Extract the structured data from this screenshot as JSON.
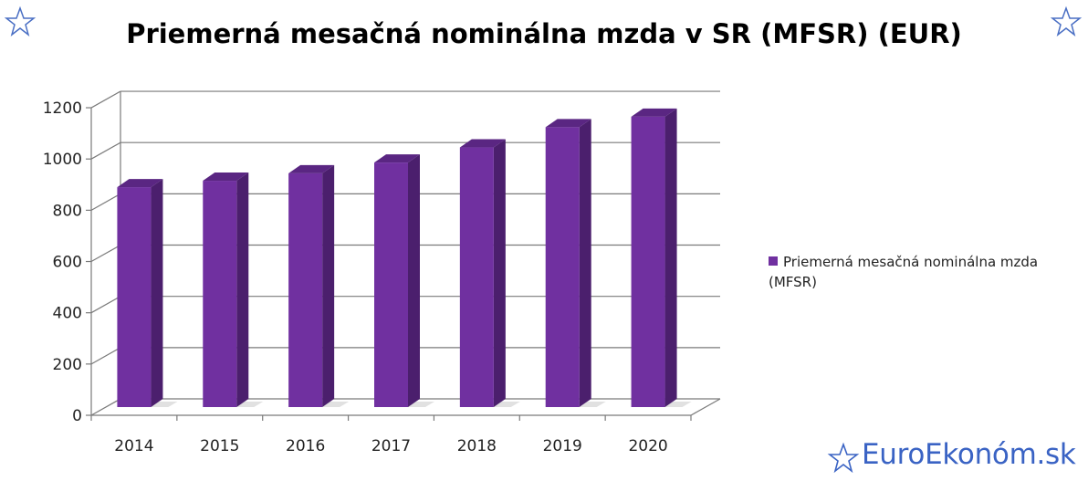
{
  "chart_data": {
    "type": "bar",
    "title": "Priemerná mesačná nominálna mzda v SR (MFSR) (EUR)",
    "categories": [
      "2014",
      "2015",
      "2016",
      "2017",
      "2018",
      "2019",
      "2020"
    ],
    "series": [
      {
        "name": "Priemerná mesačná nominálna mzda (MFSR)",
        "values": [
          858,
          883,
          912,
          954,
          1013,
          1092,
          1133
        ]
      }
    ],
    "yticks": [
      "0",
      "200",
      "400",
      "600",
      "800",
      "1000",
      "1200"
    ],
    "ylim": [
      0,
      1200
    ],
    "grid": true,
    "legend": "right",
    "bar_color": "#7030a0",
    "bar_side_color": "#4b1f6d",
    "bar_top_color": "#5a2682"
  },
  "legend": {
    "line1": "Priemerná mesačná nominálna mzda",
    "line2": "(MFSR)"
  },
  "brand": {
    "text": "EuroEkonóm.sk",
    "icon": "star-icon"
  }
}
